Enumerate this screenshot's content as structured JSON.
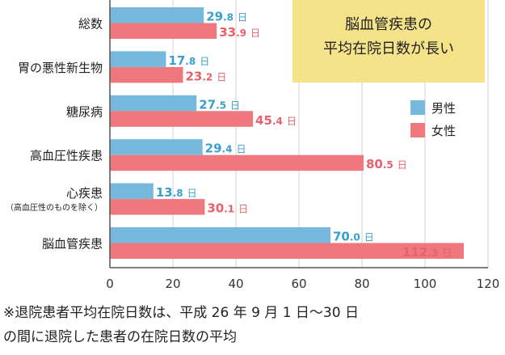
{
  "chart_data": {
    "type": "bar",
    "orientation": "horizontal",
    "categories": [
      {
        "label": "総数",
        "sublabel": ""
      },
      {
        "label": "胃の悪性新生物",
        "sublabel": ""
      },
      {
        "label": "糖尿病",
        "sublabel": ""
      },
      {
        "label": "高血圧性疾患",
        "sublabel": ""
      },
      {
        "label": "心疾患",
        "sublabel": "（高血圧性のものを除く）"
      },
      {
        "label": "脳血管疾患",
        "sublabel": ""
      }
    ],
    "series": [
      {
        "name": "男性",
        "color": "#76b9dc",
        "label_color": "#3a9fcd",
        "values": [
          29.8,
          17.8,
          27.5,
          29.4,
          13.8,
          70.0
        ],
        "value_labels": [
          {
            "int": "29",
            "dec": ".8"
          },
          {
            "int": "17",
            "dec": ".8"
          },
          {
            "int": "27",
            "dec": ".5"
          },
          {
            "int": "29",
            "dec": ".4"
          },
          {
            "int": "13",
            "dec": ".8"
          },
          {
            "int": "70",
            "dec": ".0"
          }
        ]
      },
      {
        "name": "女性",
        "color": "#ee787d",
        "label_color": "#e8606a",
        "values": [
          33.9,
          23.2,
          45.4,
          80.5,
          30.1,
          112.3
        ],
        "value_labels": [
          {
            "int": "33",
            "dec": ".9"
          },
          {
            "int": "23",
            "dec": ".2"
          },
          {
            "int": "45",
            "dec": ".4"
          },
          {
            "int": "80",
            "dec": ".5"
          },
          {
            "int": "30",
            "dec": ".1"
          },
          {
            "int": "112",
            "dec": ".3"
          }
        ]
      }
    ],
    "value_unit": "日",
    "xlim": [
      0,
      120
    ],
    "xticks": [
      "0",
      "20",
      "40",
      "60",
      "80",
      "100",
      "120"
    ],
    "grid": true,
    "legend": "right",
    "grid_color": "#d0d0d0"
  },
  "callout": {
    "line1": "脳血管疾患の",
    "line2": "平均在院日数が長い",
    "color": "#f5e38a"
  },
  "footnote": {
    "line1": "※退院患者平均在院日数は、平成 26 年 9 月 1 日〜30 日",
    "line2": "の間に退院した患者の在院日数の平均"
  }
}
